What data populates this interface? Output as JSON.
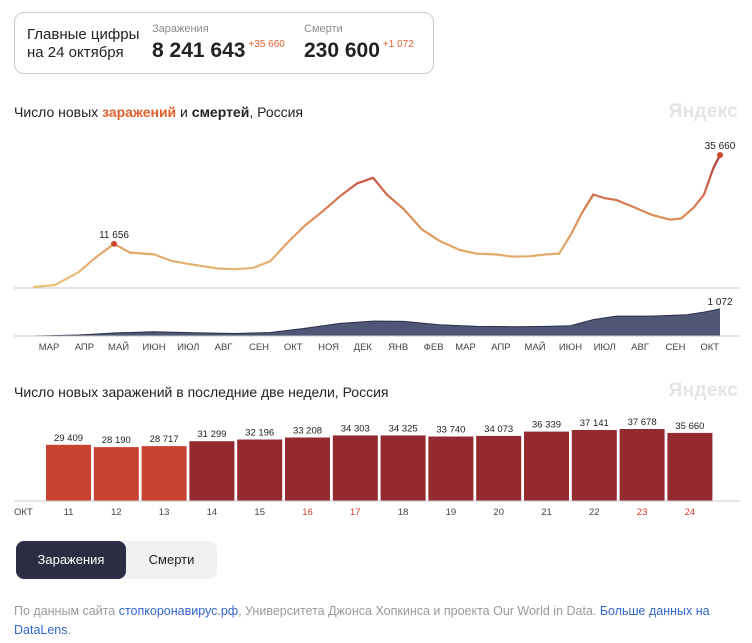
{
  "summary": {
    "title_line1": "Главные цифры",
    "title_line2": "на 24 октября",
    "cases_label": "Заражения",
    "cases_value": "8 241 643",
    "cases_delta": "+35 660",
    "deaths_label": "Смерти",
    "deaths_value": "230 600",
    "deaths_delta": "+1 072"
  },
  "chart1": {
    "title_part1": "Число новых ",
    "title_cases": "заражений",
    "title_part2": " и ",
    "title_deaths": "смертей",
    "title_part3": ", Россия",
    "watermark": "Яндекс"
  },
  "chart2": {
    "title": "Число новых заражений в последние две недели, Россия",
    "watermark": "Яндекс"
  },
  "tabs": {
    "cases": "Заражения",
    "deaths": "Смерти"
  },
  "footer": {
    "prefix": "По данным сайта ",
    "link1": "стопкоронавирус.рф",
    "middle": ", Университета Джонса Хопкинса и проекта Our World in Data. ",
    "link2": "Больше данных на DataLens",
    "suffix": "."
  },
  "colors": {
    "cases_low": "#e8b86a",
    "cases_high": "#c8472e",
    "deaths_area": "#3d4466",
    "bar_light": "#c94333",
    "bar_dark": "#932a2f",
    "weekend_tick": "#d33a2c"
  },
  "chart_data": [
    {
      "type": "line",
      "title": "Число новых заражений и смертей, Россия",
      "series": [
        {
          "name": "заражений",
          "x": [
            "2020-03-01",
            "2020-03-20",
            "2020-04-10",
            "2020-04-25",
            "2020-05-11",
            "2020-05-25",
            "2020-06-15",
            "2020-07-01",
            "2020-07-20",
            "2020-08-10",
            "2020-08-25",
            "2020-09-10",
            "2020-09-25",
            "2020-10-10",
            "2020-10-25",
            "2020-11-10",
            "2020-11-25",
            "2020-12-10",
            "2020-12-24",
            "2021-01-05",
            "2021-01-20",
            "2021-02-05",
            "2021-02-20",
            "2021-03-10",
            "2021-03-25",
            "2021-04-10",
            "2021-04-25",
            "2021-05-10",
            "2021-05-25",
            "2021-06-05",
            "2021-06-15",
            "2021-06-25",
            "2021-07-05",
            "2021-07-15",
            "2021-07-25",
            "2021-08-10",
            "2021-08-25",
            "2021-09-10",
            "2021-09-20",
            "2021-10-01",
            "2021-10-10",
            "2021-10-18",
            "2021-10-24"
          ],
          "values": [
            0,
            500,
            4000,
            8000,
            11656,
            9300,
            8800,
            7000,
            6000,
            5000,
            4800,
            5200,
            7000,
            12000,
            16500,
            20500,
            24500,
            28000,
            29500,
            25000,
            21000,
            15500,
            12500,
            10000,
            9000,
            8800,
            8200,
            8300,
            8800,
            9000,
            14000,
            20000,
            25000,
            24000,
            23500,
            21500,
            19500,
            18200,
            18500,
            21500,
            25000,
            32000,
            35660
          ]
        },
        {
          "name": "смертей",
          "x": [
            "2020-03-01",
            "2020-04-10",
            "2020-05-11",
            "2020-06-15",
            "2020-07-20",
            "2020-08-25",
            "2020-09-25",
            "2020-10-25",
            "2020-11-25",
            "2020-12-24",
            "2021-01-20",
            "2021-02-20",
            "2021-03-25",
            "2021-04-25",
            "2021-05-25",
            "2021-06-15",
            "2021-07-05",
            "2021-07-25",
            "2021-08-25",
            "2021-09-25",
            "2021-10-10",
            "2021-10-24"
          ],
          "values": [
            0,
            40,
            120,
            170,
            130,
            100,
            140,
            300,
            500,
            590,
            580,
            450,
            380,
            370,
            380,
            410,
            650,
            790,
            790,
            840,
            950,
            1072
          ]
        }
      ],
      "annotations": [
        "11 656",
        "35 660",
        "1 072"
      ],
      "x_tick_labels": [
        "МАР",
        "АПР",
        "МАЙ",
        "ИЮН",
        "ИЮЛ",
        "АВГ",
        "СЕН",
        "ОКТ",
        "НОЯ",
        "ДЕК",
        "ЯНВ",
        "ФЕВ",
        "МАР",
        "АПР",
        "МАЙ",
        "ИЮН",
        "ИЮЛ",
        "АВГ",
        "СЕН",
        "ОКТ"
      ]
    },
    {
      "type": "bar",
      "title": "Число новых заражений в последние две недели, Россия",
      "categories": [
        "11",
        "12",
        "13",
        "14",
        "15",
        "16",
        "17",
        "18",
        "19",
        "20",
        "21",
        "22",
        "23",
        "24"
      ],
      "values": [
        29409,
        28190,
        28717,
        31299,
        32196,
        33208,
        34303,
        34325,
        33740,
        34073,
        36339,
        37141,
        37678,
        35660
      ],
      "value_labels": [
        "29 409",
        "28 190",
        "28 717",
        "31 299",
        "32 196",
        "33 208",
        "34 303",
        "34 325",
        "33 740",
        "34 073",
        "36 339",
        "37 141",
        "37 678",
        "35 660"
      ],
      "x_prefix": "ОКТ",
      "weekend_categories": [
        "16",
        "17",
        "23",
        "24"
      ],
      "light_categories": [
        "11",
        "12",
        "13"
      ],
      "ylim": [
        0,
        37678
      ]
    }
  ]
}
